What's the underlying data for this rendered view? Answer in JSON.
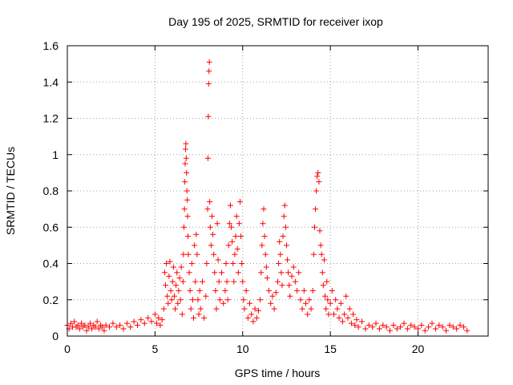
{
  "chart_data": {
    "type": "scatter",
    "title": "Day 195 of 2025, SRMTID for receiver ixop",
    "xlabel": "GPS time / hours",
    "ylabel": "SRMTID / TECUs",
    "xlim": [
      0,
      24
    ],
    "ylim": [
      0,
      1.6
    ],
    "xticks": [
      0,
      5,
      10,
      15,
      20
    ],
    "xtick_labels": [
      "0",
      "5",
      "10",
      "15",
      "20"
    ],
    "yticks": [
      0,
      0.2,
      0.4,
      0.6,
      0.8,
      1.0,
      1.2,
      1.4,
      1.6
    ],
    "ytick_labels": [
      "0",
      "0.2",
      "0.4",
      "0.6",
      "0.8",
      "1",
      "1.2",
      "1.4",
      "1.6"
    ],
    "grid": true,
    "marker": "+",
    "marker_color": "#ff0000",
    "series": [
      {
        "name": "SRMTID",
        "points": [
          [
            0.0,
            0.06
          ],
          [
            0.1,
            0.04
          ],
          [
            0.2,
            0.07
          ],
          [
            0.3,
            0.05
          ],
          [
            0.4,
            0.08
          ],
          [
            0.5,
            0.05
          ],
          [
            0.6,
            0.06
          ],
          [
            0.7,
            0.04
          ],
          [
            0.8,
            0.07
          ],
          [
            0.9,
            0.05
          ],
          [
            1.0,
            0.06
          ],
          [
            1.1,
            0.03
          ],
          [
            1.2,
            0.05
          ],
          [
            1.3,
            0.07
          ],
          [
            1.4,
            0.04
          ],
          [
            1.5,
            0.06
          ],
          [
            1.6,
            0.05
          ],
          [
            1.7,
            0.08
          ],
          [
            1.8,
            0.04
          ],
          [
            1.9,
            0.06
          ],
          [
            2.0,
            0.05
          ],
          [
            2.1,
            0.03
          ],
          [
            2.2,
            0.06
          ],
          [
            2.4,
            0.05
          ],
          [
            2.6,
            0.07
          ],
          [
            2.8,
            0.05
          ],
          [
            3.0,
            0.06
          ],
          [
            3.2,
            0.04
          ],
          [
            3.4,
            0.07
          ],
          [
            3.6,
            0.05
          ],
          [
            3.8,
            0.08
          ],
          [
            4.0,
            0.06
          ],
          [
            4.2,
            0.09
          ],
          [
            4.4,
            0.07
          ],
          [
            4.6,
            0.1
          ],
          [
            4.8,
            0.08
          ],
          [
            5.0,
            0.12
          ],
          [
            5.1,
            0.07
          ],
          [
            5.2,
            0.1
          ],
          [
            5.3,
            0.06
          ],
          [
            5.4,
            0.09
          ],
          [
            5.5,
            0.15
          ],
          [
            5.55,
            0.35
          ],
          [
            5.6,
            0.28
          ],
          [
            5.65,
            0.4
          ],
          [
            5.7,
            0.22
          ],
          [
            5.75,
            0.18
          ],
          [
            5.8,
            0.33
          ],
          [
            5.85,
            0.41
          ],
          [
            5.9,
            0.25
          ],
          [
            5.95,
            0.2
          ],
          [
            6.0,
            0.3
          ],
          [
            6.05,
            0.38
          ],
          [
            6.1,
            0.22
          ],
          [
            6.15,
            0.15
          ],
          [
            6.2,
            0.28
          ],
          [
            6.25,
            0.35
          ],
          [
            6.3,
            0.18
          ],
          [
            6.35,
            0.25
          ],
          [
            6.4,
            0.32
          ],
          [
            6.45,
            0.2
          ],
          [
            6.5,
            0.38
          ],
          [
            6.55,
            0.12
          ],
          [
            6.6,
            0.3
          ],
          [
            6.62,
            0.45
          ],
          [
            6.65,
            0.6
          ],
          [
            6.68,
            0.7
          ],
          [
            6.7,
            0.85
          ],
          [
            6.72,
            0.95
          ],
          [
            6.74,
            1.03
          ],
          [
            6.76,
            1.06
          ],
          [
            6.78,
            0.98
          ],
          [
            6.8,
            0.9
          ],
          [
            6.82,
            0.8
          ],
          [
            6.84,
            0.75
          ],
          [
            6.86,
            0.66
          ],
          [
            6.88,
            0.55
          ],
          [
            6.9,
            0.45
          ],
          [
            6.95,
            0.35
          ],
          [
            7.0,
            0.25
          ],
          [
            7.05,
            0.15
          ],
          [
            7.1,
            0.4
          ],
          [
            7.15,
            0.2
          ],
          [
            7.2,
            0.1
          ],
          [
            7.25,
            0.5
          ],
          [
            7.3,
            0.3
          ],
          [
            7.35,
            0.56
          ],
          [
            7.4,
            0.45
          ],
          [
            7.45,
            0.2
          ],
          [
            7.5,
            0.12
          ],
          [
            7.55,
            0.25
          ],
          [
            7.6,
            0.15
          ],
          [
            7.7,
            0.3
          ],
          [
            7.8,
            0.1
          ],
          [
            7.9,
            0.22
          ],
          [
            7.95,
            0.4
          ],
          [
            8.0,
            0.7
          ],
          [
            8.02,
            0.98
          ],
          [
            8.04,
            1.21
          ],
          [
            8.06,
            1.39
          ],
          [
            8.08,
            1.46
          ],
          [
            8.1,
            1.51
          ],
          [
            8.12,
            0.74
          ],
          [
            8.15,
            0.6
          ],
          [
            8.2,
            0.5
          ],
          [
            8.25,
            0.66
          ],
          [
            8.3,
            0.56
          ],
          [
            8.35,
            0.45
          ],
          [
            8.4,
            0.35
          ],
          [
            8.45,
            0.25
          ],
          [
            8.5,
            0.15
          ],
          [
            8.55,
            0.62
          ],
          [
            8.6,
            0.42
          ],
          [
            8.65,
            0.3
          ],
          [
            8.7,
            0.2
          ],
          [
            8.8,
            0.35
          ],
          [
            8.9,
            0.18
          ],
          [
            9.0,
            0.25
          ],
          [
            9.05,
            0.4
          ],
          [
            9.1,
            0.3
          ],
          [
            9.15,
            0.2
          ],
          [
            9.2,
            0.5
          ],
          [
            9.25,
            0.62
          ],
          [
            9.3,
            0.72
          ],
          [
            9.35,
            0.6
          ],
          [
            9.4,
            0.52
          ],
          [
            9.45,
            0.4
          ],
          [
            9.5,
            0.3
          ],
          [
            9.55,
            0.45
          ],
          [
            9.6,
            0.55
          ],
          [
            9.65,
            0.66
          ],
          [
            9.7,
            0.48
          ],
          [
            9.75,
            0.35
          ],
          [
            9.8,
            0.62
          ],
          [
            9.85,
            0.74
          ],
          [
            9.9,
            0.55
          ],
          [
            9.95,
            0.4
          ],
          [
            10.0,
            0.3
          ],
          [
            10.05,
            0.2
          ],
          [
            10.1,
            0.15
          ],
          [
            10.2,
            0.25
          ],
          [
            10.3,
            0.1
          ],
          [
            10.4,
            0.18
          ],
          [
            10.5,
            0.12
          ],
          [
            10.6,
            0.08
          ],
          [
            10.7,
            0.15
          ],
          [
            10.8,
            0.1
          ],
          [
            10.9,
            0.14
          ],
          [
            11.0,
            0.2
          ],
          [
            11.05,
            0.35
          ],
          [
            11.1,
            0.5
          ],
          [
            11.15,
            0.62
          ],
          [
            11.2,
            0.7
          ],
          [
            11.25,
            0.55
          ],
          [
            11.3,
            0.45
          ],
          [
            11.35,
            0.38
          ],
          [
            11.4,
            0.32
          ],
          [
            11.5,
            0.25
          ],
          [
            11.6,
            0.18
          ],
          [
            11.7,
            0.22
          ],
          [
            11.8,
            0.15
          ],
          [
            11.9,
            0.24
          ],
          [
            12.0,
            0.3
          ],
          [
            12.05,
            0.4
          ],
          [
            12.1,
            0.52
          ],
          [
            12.15,
            0.45
          ],
          [
            12.2,
            0.35
          ],
          [
            12.25,
            0.28
          ],
          [
            12.3,
            0.55
          ],
          [
            12.35,
            0.66
          ],
          [
            12.4,
            0.72
          ],
          [
            12.45,
            0.6
          ],
          [
            12.5,
            0.5
          ],
          [
            12.55,
            0.42
          ],
          [
            12.6,
            0.35
          ],
          [
            12.65,
            0.28
          ],
          [
            12.7,
            0.22
          ],
          [
            12.8,
            0.33
          ],
          [
            12.9,
            0.38
          ],
          [
            13.0,
            0.3
          ],
          [
            13.1,
            0.25
          ],
          [
            13.2,
            0.35
          ],
          [
            13.3,
            0.2
          ],
          [
            13.4,
            0.15
          ],
          [
            13.5,
            0.25
          ],
          [
            13.6,
            0.18
          ],
          [
            13.7,
            0.12
          ],
          [
            13.8,
            0.2
          ],
          [
            13.9,
            0.15
          ],
          [
            14.0,
            0.25
          ],
          [
            14.05,
            0.45
          ],
          [
            14.1,
            0.6
          ],
          [
            14.15,
            0.7
          ],
          [
            14.2,
            0.8
          ],
          [
            14.25,
            0.88
          ],
          [
            14.3,
            0.9
          ],
          [
            14.35,
            0.85
          ],
          [
            14.4,
            0.58
          ],
          [
            14.45,
            0.5
          ],
          [
            14.5,
            0.45
          ],
          [
            14.55,
            0.35
          ],
          [
            14.6,
            0.28
          ],
          [
            14.65,
            0.42
          ],
          [
            14.7,
            0.22
          ],
          [
            14.75,
            0.15
          ],
          [
            14.8,
            0.3
          ],
          [
            14.85,
            0.2
          ],
          [
            14.9,
            0.12
          ],
          [
            15.0,
            0.18
          ],
          [
            15.1,
            0.25
          ],
          [
            15.2,
            0.12
          ],
          [
            15.3,
            0.2
          ],
          [
            15.4,
            0.15
          ],
          [
            15.5,
            0.1
          ],
          [
            15.6,
            0.18
          ],
          [
            15.7,
            0.08
          ],
          [
            15.8,
            0.12
          ],
          [
            15.9,
            0.22
          ],
          [
            16.0,
            0.1
          ],
          [
            16.1,
            0.15
          ],
          [
            16.2,
            0.07
          ],
          [
            16.3,
            0.12
          ],
          [
            16.4,
            0.06
          ],
          [
            16.5,
            0.09
          ],
          [
            16.6,
            0.05
          ],
          [
            16.8,
            0.08
          ],
          [
            17.0,
            0.04
          ],
          [
            17.2,
            0.06
          ],
          [
            17.4,
            0.05
          ],
          [
            17.6,
            0.07
          ],
          [
            17.8,
            0.04
          ],
          [
            18.0,
            0.06
          ],
          [
            18.2,
            0.05
          ],
          [
            18.4,
            0.03
          ],
          [
            18.6,
            0.06
          ],
          [
            18.8,
            0.04
          ],
          [
            19.0,
            0.05
          ],
          [
            19.2,
            0.07
          ],
          [
            19.4,
            0.04
          ],
          [
            19.6,
            0.06
          ],
          [
            19.8,
            0.05
          ],
          [
            20.0,
            0.04
          ],
          [
            20.2,
            0.06
          ],
          [
            20.4,
            0.03
          ],
          [
            20.6,
            0.05
          ],
          [
            20.8,
            0.07
          ],
          [
            21.0,
            0.04
          ],
          [
            21.2,
            0.06
          ],
          [
            21.4,
            0.05
          ],
          [
            21.6,
            0.03
          ],
          [
            21.8,
            0.06
          ],
          [
            22.0,
            0.05
          ],
          [
            22.2,
            0.04
          ],
          [
            22.4,
            0.06
          ],
          [
            22.6,
            0.05
          ],
          [
            22.8,
            0.03
          ]
        ]
      }
    ]
  }
}
